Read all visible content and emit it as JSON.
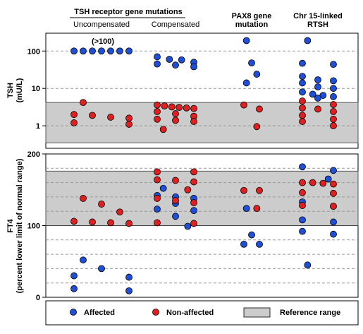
{
  "headers": {
    "group_tshr": "TSH receptor gene mutations",
    "col1": "Uncompensated",
    "col2": "Compensated",
    "col3_line1": "PAX8 gene",
    "col3_line2": "mutation",
    "col4_line1": "Chr 15-linked",
    "col4_line2": "RTSH"
  },
  "annotation": "(>100)",
  "legend": {
    "affected": "Affected",
    "non_affected": "Non-affected",
    "reference": "Reference range"
  },
  "colors": {
    "affected": "#1f4fd6",
    "non_affected": "#e02020",
    "reference": "#cccccc",
    "grid": "#999999"
  },
  "chart_data": [
    {
      "type": "scatter",
      "panel": "TSH",
      "ylabel_line1": "TSH",
      "ylabel_line2": "(mU/L)",
      "yscale": "log",
      "yticks": [
        1,
        10,
        100
      ],
      "ytick_labels": [
        "1",
        "10",
        "100"
      ],
      "ylim": [
        0.25,
        300
      ],
      "reference_range": [
        0.35,
        4.2
      ],
      "categories": [
        "Uncompensated",
        "Compensated",
        "PAX8 gene mutation",
        "Chr 15-linked RTSH"
      ],
      "series": [
        {
          "name": "Affected",
          "points": [
            {
              "cat": 0,
              "y": 100
            },
            {
              "cat": 0,
              "y": 100
            },
            {
              "cat": 0,
              "y": 100
            },
            {
              "cat": 0,
              "y": 100
            },
            {
              "cat": 0,
              "y": 100
            },
            {
              "cat": 0,
              "y": 100
            },
            {
              "cat": 0,
              "y": 100
            },
            {
              "cat": 1,
              "y": 70
            },
            {
              "cat": 1,
              "y": 60
            },
            {
              "cat": 1,
              "y": 58
            },
            {
              "cat": 1,
              "y": 50
            },
            {
              "cat": 1,
              "y": 45
            },
            {
              "cat": 1,
              "y": 42
            },
            {
              "cat": 1,
              "y": 38
            },
            {
              "cat": 2,
              "y": 190
            },
            {
              "cat": 2,
              "y": 48
            },
            {
              "cat": 2,
              "y": 24
            },
            {
              "cat": 2,
              "y": 14
            },
            {
              "cat": 3,
              "y": 190
            },
            {
              "cat": 3,
              "y": 47
            },
            {
              "cat": 3,
              "y": 44
            },
            {
              "cat": 3,
              "y": 21
            },
            {
              "cat": 3,
              "y": 17
            },
            {
              "cat": 3,
              "y": 16
            },
            {
              "cat": 3,
              "y": 14
            },
            {
              "cat": 3,
              "y": 11
            },
            {
              "cat": 3,
              "y": 10
            },
            {
              "cat": 3,
              "y": 8
            },
            {
              "cat": 3,
              "y": 7
            },
            {
              "cat": 3,
              "y": 6.5
            },
            {
              "cat": 3,
              "y": 6
            },
            {
              "cat": 3,
              "y": 5.5
            }
          ]
        },
        {
          "name": "Non-affected",
          "points": [
            {
              "cat": 0,
              "y": 4.2
            },
            {
              "cat": 0,
              "y": 2.0
            },
            {
              "cat": 0,
              "y": 1.9
            },
            {
              "cat": 0,
              "y": 1.7
            },
            {
              "cat": 0,
              "y": 1.6
            },
            {
              "cat": 0,
              "y": 1.2
            },
            {
              "cat": 0,
              "y": 1.1
            },
            {
              "cat": 1,
              "y": 3.6
            },
            {
              "cat": 1,
              "y": 3.4
            },
            {
              "cat": 1,
              "y": 3.2
            },
            {
              "cat": 1,
              "y": 3.1
            },
            {
              "cat": 1,
              "y": 3.0
            },
            {
              "cat": 1,
              "y": 2.9
            },
            {
              "cat": 1,
              "y": 2.4
            },
            {
              "cat": 1,
              "y": 2.1
            },
            {
              "cat": 1,
              "y": 1.8
            },
            {
              "cat": 1,
              "y": 1.5
            },
            {
              "cat": 1,
              "y": 1.4
            },
            {
              "cat": 1,
              "y": 1.3
            },
            {
              "cat": 1,
              "y": 0.8
            },
            {
              "cat": 2,
              "y": 3.6
            },
            {
              "cat": 2,
              "y": 2.8
            },
            {
              "cat": 2,
              "y": 0.95
            },
            {
              "cat": 3,
              "y": 4.6
            },
            {
              "cat": 3,
              "y": 3.7
            },
            {
              "cat": 3,
              "y": 3.0
            },
            {
              "cat": 3,
              "y": 2.8
            },
            {
              "cat": 3,
              "y": 2.4
            },
            {
              "cat": 3,
              "y": 1.9
            },
            {
              "cat": 3,
              "y": 1.5
            },
            {
              "cat": 3,
              "y": 1.3
            },
            {
              "cat": 3,
              "y": 1.0
            }
          ]
        }
      ]
    },
    {
      "type": "scatter",
      "panel": "FT4",
      "ylabel_line1": "FT4",
      "ylabel_line2": "(percent lower limit of normal range)",
      "yscale": "linear",
      "yticks": [
        0,
        100,
        200
      ],
      "ytick_labels": [
        "0",
        "100",
        "200"
      ],
      "ylim": [
        0,
        200
      ],
      "dashed_gridlines": [
        20,
        40,
        60,
        80,
        120,
        140,
        160,
        180
      ],
      "reference_range": [
        100,
        176
      ],
      "categories": [
        "Uncompensated",
        "Compensated",
        "PAX8 gene mutation",
        "Chr 15-linked RTSH"
      ],
      "series": [
        {
          "name": "Affected",
          "points": [
            {
              "cat": 0,
              "y": 52
            },
            {
              "cat": 0,
              "y": 40
            },
            {
              "cat": 0,
              "y": 30
            },
            {
              "cat": 0,
              "y": 28
            },
            {
              "cat": 0,
              "y": 12
            },
            {
              "cat": 0,
              "y": 9
            },
            {
              "cat": 1,
              "y": 152
            },
            {
              "cat": 1,
              "y": 142
            },
            {
              "cat": 1,
              "y": 140
            },
            {
              "cat": 1,
              "y": 138
            },
            {
              "cat": 1,
              "y": 131
            },
            {
              "cat": 1,
              "y": 123
            },
            {
              "cat": 1,
              "y": 121
            },
            {
              "cat": 1,
              "y": 113
            },
            {
              "cat": 1,
              "y": 99
            },
            {
              "cat": 2,
              "y": 124
            },
            {
              "cat": 2,
              "y": 87
            },
            {
              "cat": 2,
              "y": 74
            },
            {
              "cat": 2,
              "y": 74
            },
            {
              "cat": 3,
              "y": 182
            },
            {
              "cat": 3,
              "y": 177
            },
            {
              "cat": 3,
              "y": 165
            },
            {
              "cat": 3,
              "y": 133
            },
            {
              "cat": 3,
              "y": 127
            },
            {
              "cat": 3,
              "y": 108
            },
            {
              "cat": 3,
              "y": 105
            },
            {
              "cat": 3,
              "y": 92
            },
            {
              "cat": 3,
              "y": 88
            },
            {
              "cat": 3,
              "y": 45
            }
          ]
        },
        {
          "name": "Non-affected",
          "points": [
            {
              "cat": 0,
              "y": 138
            },
            {
              "cat": 0,
              "y": 130
            },
            {
              "cat": 0,
              "y": 119
            },
            {
              "cat": 0,
              "y": 106
            },
            {
              "cat": 0,
              "y": 105
            },
            {
              "cat": 0,
              "y": 104
            },
            {
              "cat": 0,
              "y": 103
            },
            {
              "cat": 1,
              "y": 175
            },
            {
              "cat": 1,
              "y": 175
            },
            {
              "cat": 1,
              "y": 164
            },
            {
              "cat": 1,
              "y": 163
            },
            {
              "cat": 1,
              "y": 161
            },
            {
              "cat": 1,
              "y": 150
            },
            {
              "cat": 1,
              "y": 138
            },
            {
              "cat": 1,
              "y": 135
            },
            {
              "cat": 1,
              "y": 132
            },
            {
              "cat": 1,
              "y": 104
            },
            {
              "cat": 1,
              "y": 103
            },
            {
              "cat": 2,
              "y": 149
            },
            {
              "cat": 2,
              "y": 149
            },
            {
              "cat": 2,
              "y": 124
            },
            {
              "cat": 3,
              "y": 160
            },
            {
              "cat": 3,
              "y": 160
            },
            {
              "cat": 3,
              "y": 159
            },
            {
              "cat": 3,
              "y": 158
            },
            {
              "cat": 3,
              "y": 146
            },
            {
              "cat": 3,
              "y": 145
            },
            {
              "cat": 3,
              "y": 128
            },
            {
              "cat": 3,
              "y": 127
            }
          ]
        }
      ]
    }
  ]
}
